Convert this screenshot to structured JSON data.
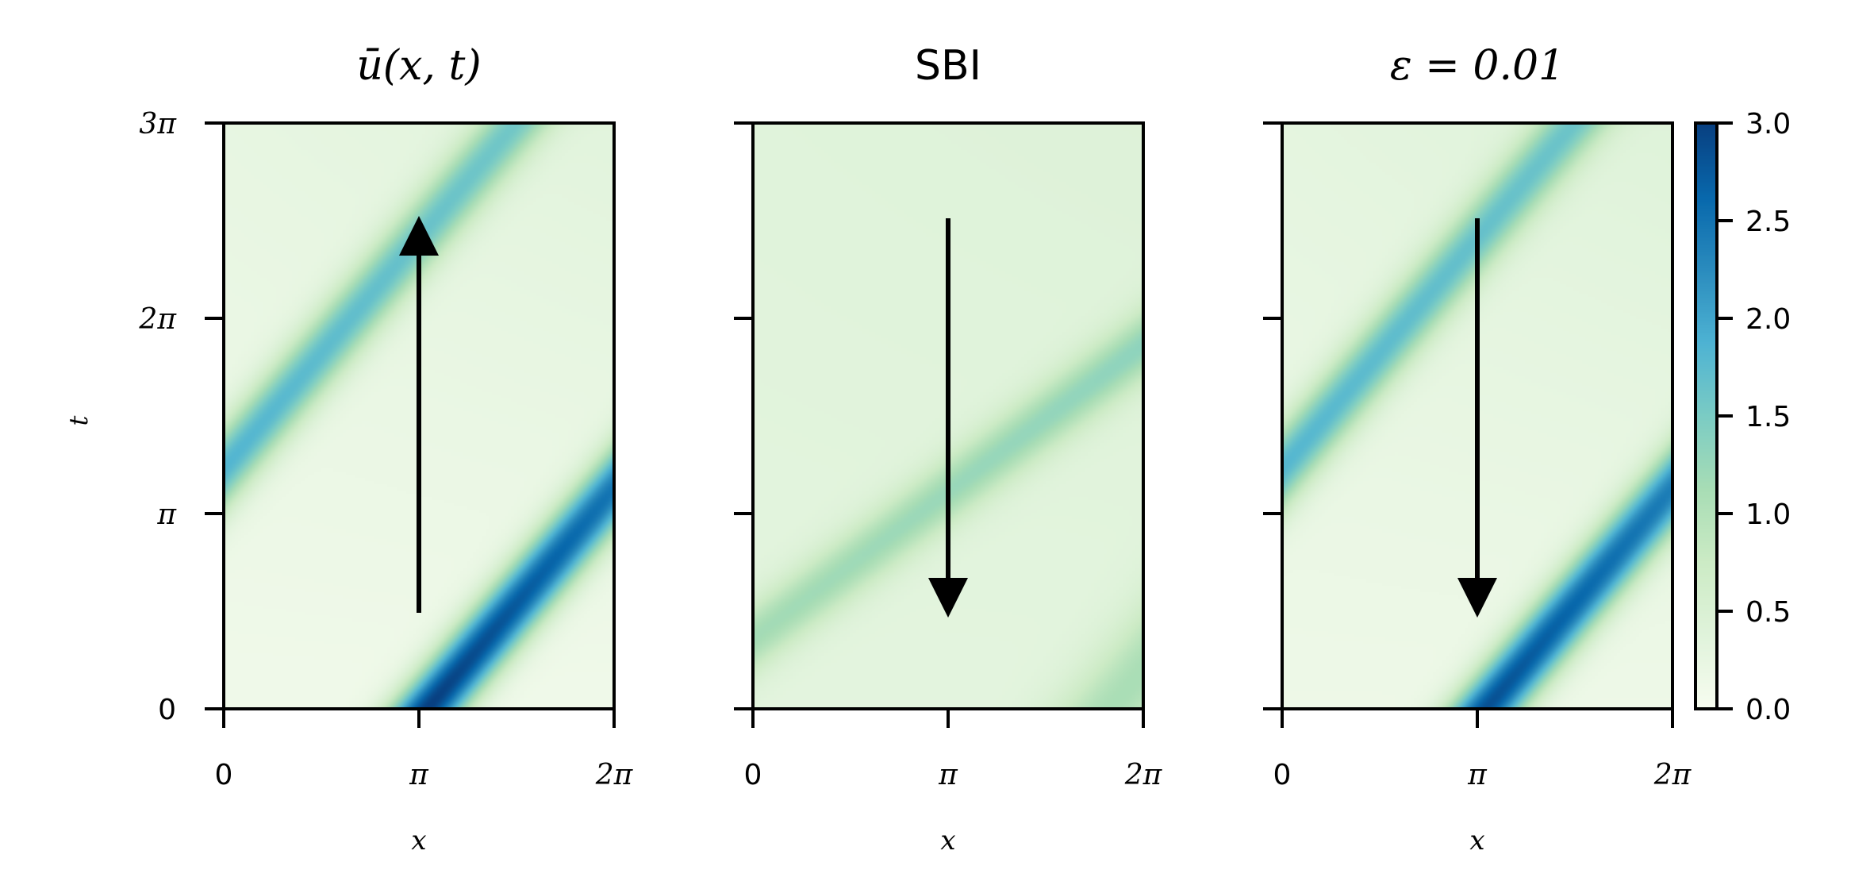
{
  "chart_data": {
    "type": "heatmap",
    "colormap": "GnBu",
    "colorbar": {
      "min": 0.0,
      "max": 3.0,
      "ticks": [
        "0.0",
        "0.5",
        "1.0",
        "1.5",
        "2.0",
        "2.5",
        "3.0"
      ]
    },
    "shared_axes": {
      "xlabel": "x",
      "ylabel": "t",
      "x_ticks": [
        "0",
        "π",
        "2π"
      ],
      "y_ticks": [
        "0",
        "π",
        "2π",
        "3π"
      ],
      "xlim": [
        0,
        6.283
      ],
      "ylim": [
        0,
        9.425
      ]
    },
    "panels": [
      {
        "title": "ū(x, t)",
        "arrow": {
          "direction": "up",
          "x": 3.1416,
          "t_from": 2.4,
          "t_to": 7.6
        },
        "bands": [
          {
            "x_at_t0": 3.3,
            "speed": 1.18,
            "amp0": 2.9,
            "amp1": 1.25,
            "sigma": 0.42
          },
          {
            "x_at_t0": -3.3,
            "speed": 1.18,
            "amp0": 1.95,
            "amp1": 1.25,
            "sigma": 0.42
          }
        ],
        "background": [
          0.12,
          0.35
        ]
      },
      {
        "title": "SBI",
        "arrow": {
          "direction": "down",
          "x": 3.1416,
          "t_from": 7.6,
          "t_to": 2.4
        },
        "bands": [
          {
            "x_at_t0": 5.8,
            "speed": 1.18,
            "amp0": 0.78,
            "amp1": 0.78,
            "sigma": 0.65
          },
          {
            "x_at_t0": -1.5,
            "speed": 0.75,
            "amp0": 0.8,
            "amp1": 1.05,
            "sigma": 0.55
          }
        ],
        "background": [
          0.32,
          0.42
        ]
      },
      {
        "title": "ε = 0.01",
        "arrow": {
          "direction": "down",
          "x": 3.1416,
          "t_from": 7.6,
          "t_to": 2.4
        },
        "bands": [
          {
            "x_at_t0": 3.3,
            "speed": 1.18,
            "amp0": 2.7,
            "amp1": 1.25,
            "sigma": 0.42
          },
          {
            "x_at_t0": -3.3,
            "speed": 1.18,
            "amp0": 1.85,
            "amp1": 1.25,
            "sigma": 0.42
          }
        ],
        "background": [
          0.15,
          0.4
        ]
      }
    ]
  }
}
